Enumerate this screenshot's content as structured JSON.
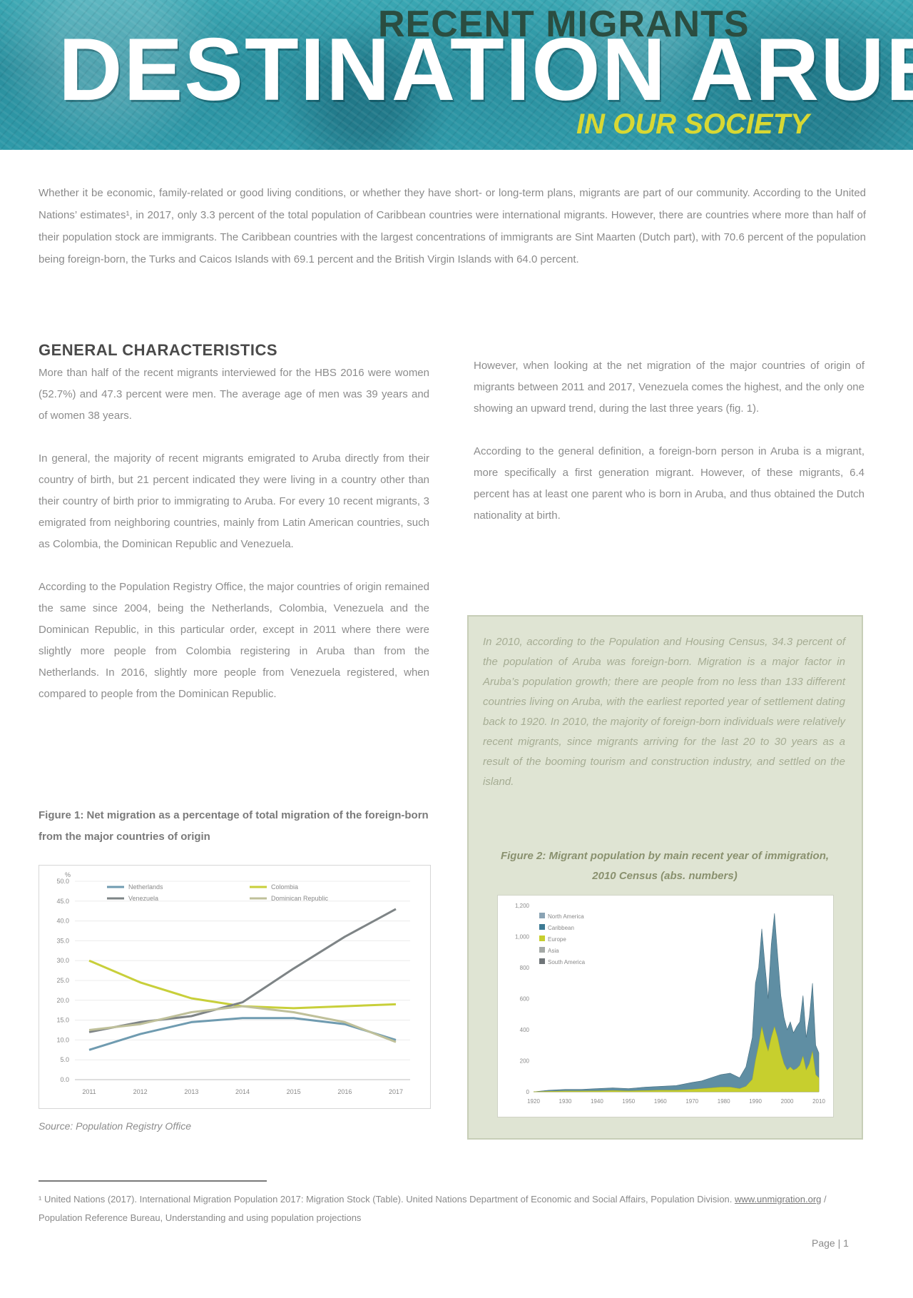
{
  "header": {
    "kicker": "RECENT MIGRANTS",
    "title": "DESTINATION ARUBA",
    "subtitle": "IN OUR SOCIETY"
  },
  "intro": "Whether it be economic, family-related or good living conditions, or whether they have short- or long-term plans, migrants are part of our community. According to the United Nations’ estimates¹, in 2017, only 3.3 percent of the total population of Caribbean countries were international migrants. However, there are countries where more than half of their population stock are immigrants. The Caribbean countries with the largest concentrations of immigrants are Sint Maarten (Dutch part), with 70.6 percent of the population being foreign-born, the Turks and Caicos Islands with 69.1 percent and the British Virgin Islands with 64.0 percent.",
  "section": {
    "heading": "GENERAL CHARACTERISTICS",
    "left_paragraphs": [
      "More than half of the recent migrants interviewed for the HBS 2016 were women (52.7%) and 47.3 percent were men. The average age of men was 39 years and of women 38 years.",
      "In general, the majority of recent migrants emigrated to Aruba directly from their country of birth, but 21 percent indicated they were living in a country other than their country of birth prior to immigrating to Aruba. For every 10 recent migrants, 3 emigrated from neighboring countries, mainly from Latin American countries, such as Colombia, the Dominican Republic and Venezuela.",
      "According to the Population Registry Office, the major countries of origin remained the same since 2004, being the Netherlands, Colombia, Venezuela and the Dominican Republic, in this particular order, except in 2011 where there were slightly more people from Colombia registering in Aruba than from the Netherlands. In 2016, slightly more people from Venezuela registered, when compared to people from the Dominican Republic."
    ],
    "right_paragraphs": [
      "However, when looking at the net migration of the major countries of origin of migrants between 2011 and 2017, Venezuela comes the highest, and the only one showing an upward trend, during the last three years (fig. 1).",
      "According to the general definition, a foreign-born person in Aruba is a migrant, more specifically a first generation migrant. However, of these migrants, 6.4 percent has at least one parent who is born in Aruba, and thus obtained the Dutch nationality at birth."
    ]
  },
  "figure1": {
    "caption": "Figure 1: Net migration as a percentage of total migration of the foreign-born from the major countries of origin",
    "source": "Source: Population Registry Office"
  },
  "infobox": {
    "text": "In 2010, according to the Population and Housing Census, 34.3 percent of the population of Aruba was foreign-born. Migration is a major factor in Aruba’s population growth; there are people from no less than 133 different countries living on Aruba, with the earliest reported year of settlement dating back to 1920. In 2010, the majority of foreign-born individuals were relatively recent migrants, since migrants arriving for the last 20 to 30 years as a result of the booming tourism and construction industry, and settled on the island.",
    "caption": "Figure 2: Migrant population by main recent year of immigration, 2010 Census (abs. numbers)"
  },
  "footnote": {
    "text": "¹ United Nations (2017). International Migration Population 2017: Migration Stock (Table). United Nations Department of Economic and Social Affairs, Population Division. ",
    "link": "www.unmigration.org",
    "text2": " / Population Reference Bureau, Understanding and using population projections"
  },
  "page_number": "Page | 1",
  "chart_data": [
    {
      "type": "line",
      "title": "",
      "y_unit_label": "%",
      "x": [
        "2011",
        "2012",
        "2013",
        "2014",
        "2015",
        "2016",
        "2017"
      ],
      "ylim": [
        0,
        50
      ],
      "y_ticks": [
        "0.0",
        "5.0",
        "10.0",
        "15.0",
        "20.0",
        "25.0",
        "30.0",
        "35.0",
        "40.0",
        "45.0",
        "50.0"
      ],
      "grid": true,
      "legend": "top",
      "series": [
        {
          "name": "Netherlands",
          "color": "#6f9bb0",
          "values": [
            7.5,
            11.5,
            14.5,
            15.5,
            15.5,
            14.0,
            10.0
          ]
        },
        {
          "name": "Colombia",
          "color": "#c8cf3a",
          "values": [
            30.0,
            24.5,
            20.5,
            18.5,
            18.0,
            18.5,
            19.0
          ]
        },
        {
          "name": "Venezuela",
          "color": "#7e8486",
          "values": [
            12.0,
            14.5,
            16.0,
            19.5,
            28.0,
            36.0,
            43.0
          ]
        },
        {
          "name": "Dominican Republic",
          "color": "#bfc09a",
          "values": [
            12.5,
            14.0,
            17.0,
            18.5,
            17.0,
            14.5,
            9.5
          ]
        }
      ]
    },
    {
      "type": "area",
      "title": "",
      "x_ticks": [
        "1920",
        "1930",
        "1940",
        "1950",
        "1960",
        "1970",
        "1980",
        "1990",
        "2000",
        "2010"
      ],
      "y_ticks": [
        "0",
        "200",
        "400",
        "600",
        "800",
        "1,000",
        "1,200"
      ],
      "ylim": [
        0,
        1200
      ],
      "legend": "top-left",
      "series": [
        {
          "name": "North America",
          "color": "#8aa3b4"
        },
        {
          "name": "Caribbean",
          "color": "#3d7a94"
        },
        {
          "name": "Europe",
          "color": "#c7cf2e"
        },
        {
          "name": "Asia",
          "color": "#a4a9a6"
        },
        {
          "name": "South America",
          "color": "#6f7578"
        }
      ],
      "years": [
        1920,
        1925,
        1930,
        1935,
        1940,
        1945,
        1950,
        1955,
        1960,
        1965,
        1970,
        1973,
        1976,
        1979,
        1982,
        1985,
        1987,
        1989,
        1990,
        1991,
        1992,
        1993,
        1994,
        1995,
        1996,
        1997,
        1998,
        1999,
        2000,
        2001,
        2002,
        2003,
        2004,
        2005,
        2006,
        2007,
        2008,
        2009,
        2010
      ],
      "stacked_totals": [
        0,
        10,
        15,
        15,
        20,
        25,
        20,
        30,
        35,
        40,
        60,
        70,
        90,
        110,
        120,
        90,
        160,
        350,
        700,
        800,
        1050,
        820,
        600,
        950,
        1150,
        880,
        620,
        480,
        400,
        450,
        380,
        420,
        450,
        620,
        350,
        480,
        700,
        300,
        250
      ],
      "highlight_values": [
        0,
        3,
        5,
        5,
        6,
        8,
        6,
        8,
        10,
        10,
        15,
        20,
        25,
        30,
        30,
        20,
        35,
        80,
        200,
        300,
        420,
        330,
        260,
        350,
        420,
        350,
        250,
        180,
        140,
        160,
        140,
        150,
        170,
        230,
        140,
        180,
        260,
        110,
        90
      ]
    }
  ]
}
